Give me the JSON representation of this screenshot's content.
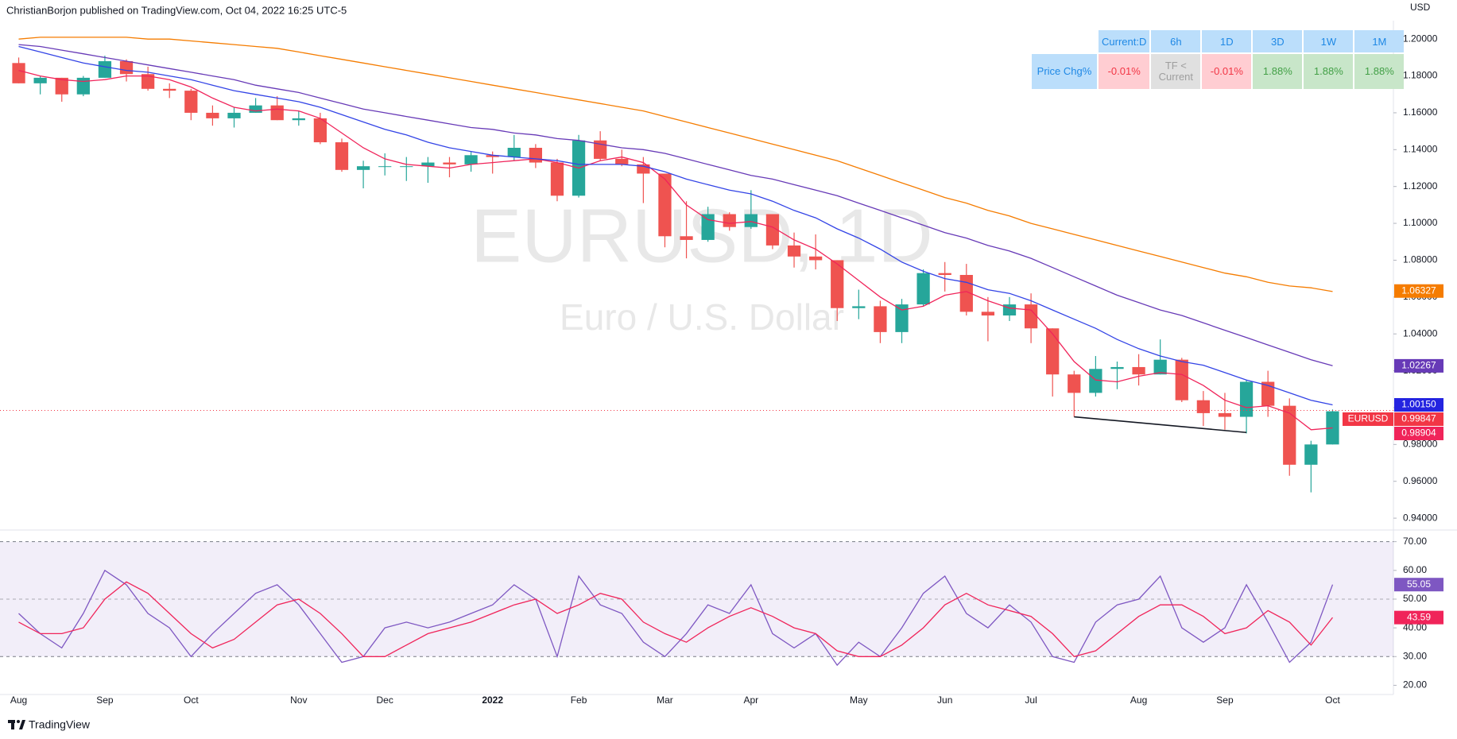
{
  "header": {
    "text": "ChristianBorjon published on TradingView.com, Oct 04, 2022 16:25 UTC-5",
    "currency": "USD"
  },
  "watermark": {
    "symbol": "EURUSD, 1D",
    "description": "Euro / U.S. Dollar"
  },
  "table": {
    "header": [
      "Current:D",
      "6h",
      "1D",
      "3D",
      "1W",
      "1M"
    ],
    "row": [
      "Price Chg%",
      "-0.01%",
      "TF < Current",
      "-0.01%",
      "1.88%",
      "1.88%",
      "1.88%"
    ]
  },
  "footer": {
    "brand": "TradingView"
  },
  "chart_data": [
    {
      "type": "candlestick",
      "categories": [
        "Aug",
        null,
        null,
        null,
        "Sep",
        null,
        null,
        null,
        "Oct",
        null,
        null,
        null,
        null,
        "Nov",
        null,
        null,
        null,
        "Dec",
        null,
        null,
        null,
        null,
        "2022",
        null,
        null,
        null,
        "Feb",
        null,
        null,
        null,
        "Mar",
        null,
        null,
        null,
        "Apr",
        null,
        null,
        null,
        null,
        "May",
        null,
        null,
        null,
        "Jun",
        null,
        null,
        null,
        "Jul",
        null,
        null,
        null,
        null,
        "Aug",
        null,
        null,
        null,
        "Sep",
        null,
        null,
        null,
        null,
        "Oct"
      ],
      "open": [
        1.187,
        1.176,
        1.179,
        1.17,
        1.179,
        1.188,
        1.181,
        1.173,
        1.172,
        1.16,
        1.157,
        1.16,
        1.164,
        1.156,
        1.157,
        1.144,
        1.129,
        1.131,
        1.131,
        1.131,
        1.133,
        1.132,
        1.137,
        1.136,
        1.141,
        1.133,
        1.115,
        1.145,
        1.135,
        1.132,
        1.127,
        1.093,
        1.091,
        1.105,
        1.098,
        1.105,
        1.088,
        1.082,
        1.08,
        1.054,
        1.055,
        1.041,
        1.056,
        1.073,
        1.072,
        1.052,
        1.05,
        1.056,
        1.043,
        1.018,
        1.008,
        1.021,
        1.022,
        1.018,
        1.026,
        1.004,
        0.997,
        0.995,
        1.014,
        1.001,
        0.969,
        0.98
      ],
      "high": [
        1.19,
        1.18,
        1.179,
        1.18,
        1.191,
        1.189,
        1.185,
        1.176,
        1.173,
        1.164,
        1.163,
        1.168,
        1.169,
        1.161,
        1.16,
        1.146,
        1.134,
        1.138,
        1.136,
        1.136,
        1.136,
        1.139,
        1.139,
        1.148,
        1.143,
        1.135,
        1.148,
        1.15,
        1.14,
        1.136,
        1.127,
        1.112,
        1.109,
        1.106,
        1.118,
        1.105,
        1.095,
        1.094,
        1.08,
        1.064,
        1.058,
        1.059,
        1.075,
        1.079,
        1.078,
        1.06,
        1.06,
        1.062,
        1.043,
        1.02,
        1.028,
        1.025,
        1.029,
        1.037,
        1.027,
        1.009,
        1.008,
        1.015,
        1.02,
        1.005,
        0.982,
        0.999
      ],
      "low": [
        1.176,
        1.17,
        1.166,
        1.169,
        1.179,
        1.177,
        1.172,
        1.168,
        1.156,
        1.153,
        1.152,
        1.16,
        1.156,
        1.153,
        1.143,
        1.128,
        1.119,
        1.126,
        1.123,
        1.122,
        1.125,
        1.128,
        1.127,
        1.134,
        1.13,
        1.112,
        1.114,
        1.134,
        1.131,
        1.111,
        1.087,
        1.081,
        1.09,
        1.096,
        1.097,
        1.086,
        1.076,
        1.075,
        1.047,
        1.048,
        1.035,
        1.035,
        1.055,
        1.063,
        1.05,
        1.036,
        1.047,
        1.035,
        1.006,
        0.995,
        1.006,
        1.01,
        1.012,
        1.018,
        1.003,
        0.99,
        0.988,
        0.986,
        0.995,
        0.963,
        0.954,
        0.98
      ],
      "close": [
        1.176,
        1.179,
        1.17,
        1.179,
        1.188,
        1.181,
        1.173,
        1.172,
        1.16,
        1.157,
        1.16,
        1.164,
        1.156,
        1.157,
        1.144,
        1.129,
        1.131,
        1.131,
        1.131,
        1.133,
        1.132,
        1.137,
        1.136,
        1.141,
        1.133,
        1.115,
        1.145,
        1.135,
        1.132,
        1.127,
        1.093,
        1.091,
        1.105,
        1.098,
        1.105,
        1.088,
        1.082,
        1.08,
        1.054,
        1.055,
        1.041,
        1.056,
        1.073,
        1.072,
        1.052,
        1.05,
        1.056,
        1.043,
        1.018,
        1.008,
        1.021,
        1.022,
        1.018,
        1.026,
        1.004,
        0.997,
        0.995,
        1.014,
        1.001,
        0.969,
        0.98,
        0.998
      ],
      "up_color": "#26a69a",
      "down_color": "#ef5350",
      "series": [
        {
          "color": "#f0245a",
          "values": [
            1.183,
            1.18,
            1.178,
            1.177,
            1.178,
            1.18,
            1.18,
            1.178,
            1.174,
            1.168,
            1.163,
            1.161,
            1.162,
            1.161,
            1.157,
            1.149,
            1.141,
            1.135,
            1.132,
            1.131,
            1.13,
            1.132,
            1.133,
            1.134,
            1.135,
            1.133,
            1.13,
            1.134,
            1.136,
            1.133,
            1.124,
            1.11,
            1.102,
            1.1,
            1.101,
            1.098,
            1.091,
            1.086,
            1.078,
            1.069,
            1.06,
            1.053,
            1.055,
            1.061,
            1.063,
            1.058,
            1.054,
            1.053,
            1.04,
            1.025,
            1.015,
            1.014,
            1.017,
            1.019,
            1.018,
            1.012,
            1.004,
            1.0,
            1.001,
            0.997,
            0.988,
            0.989
          ]
        },
        {
          "color": "#3344e6",
          "values": [
            1.196,
            1.193,
            1.19,
            1.187,
            1.185,
            1.183,
            1.182,
            1.18,
            1.178,
            1.175,
            1.172,
            1.17,
            1.168,
            1.166,
            1.163,
            1.159,
            1.155,
            1.151,
            1.148,
            1.144,
            1.141,
            1.139,
            1.137,
            1.136,
            1.135,
            1.134,
            1.132,
            1.132,
            1.132,
            1.131,
            1.128,
            1.124,
            1.121,
            1.118,
            1.116,
            1.112,
            1.107,
            1.103,
            1.097,
            1.092,
            1.086,
            1.079,
            1.074,
            1.07,
            1.068,
            1.064,
            1.062,
            1.058,
            1.053,
            1.048,
            1.043,
            1.037,
            1.032,
            1.028,
            1.025,
            1.023,
            1.019,
            1.015,
            1.012,
            1.008,
            1.004,
            1.0015
          ]
        },
        {
          "color": "#673ab7",
          "values": [
            1.197,
            1.196,
            1.194,
            1.192,
            1.19,
            1.188,
            1.186,
            1.184,
            1.182,
            1.18,
            1.178,
            1.175,
            1.173,
            1.171,
            1.168,
            1.165,
            1.162,
            1.16,
            1.158,
            1.156,
            1.154,
            1.152,
            1.151,
            1.149,
            1.148,
            1.146,
            1.145,
            1.143,
            1.141,
            1.14,
            1.138,
            1.135,
            1.132,
            1.129,
            1.126,
            1.124,
            1.121,
            1.118,
            1.115,
            1.111,
            1.107,
            1.103,
            1.099,
            1.095,
            1.092,
            1.088,
            1.085,
            1.081,
            1.076,
            1.071,
            1.066,
            1.061,
            1.057,
            1.053,
            1.05,
            1.046,
            1.042,
            1.038,
            1.034,
            1.03,
            1.026,
            1.0227
          ]
        },
        {
          "color": "#f57c00",
          "values": [
            1.2,
            1.201,
            1.201,
            1.201,
            1.201,
            1.201,
            1.2,
            1.2,
            1.199,
            1.198,
            1.197,
            1.196,
            1.195,
            1.193,
            1.191,
            1.189,
            1.187,
            1.185,
            1.183,
            1.181,
            1.179,
            1.177,
            1.175,
            1.173,
            1.171,
            1.169,
            1.167,
            1.165,
            1.163,
            1.161,
            1.158,
            1.155,
            1.152,
            1.149,
            1.146,
            1.143,
            1.14,
            1.137,
            1.134,
            1.13,
            1.126,
            1.122,
            1.118,
            1.114,
            1.111,
            1.107,
            1.104,
            1.1,
            1.097,
            1.094,
            1.091,
            1.088,
            1.085,
            1.082,
            1.079,
            1.076,
            1.073,
            1.071,
            1.068,
            1.066,
            1.065,
            1.063
          ]
        }
      ],
      "ylim": [
        0.934,
        1.21
      ],
      "yticks": [
        {
          "value": 0.94,
          "label": "0.94000"
        },
        {
          "value": 0.96,
          "label": "0.96000"
        },
        {
          "value": 0.98,
          "label": "0.98000"
        },
        {
          "value": 1.0,
          "label": "1.00000"
        },
        {
          "value": 1.02,
          "label": "1.02000"
        },
        {
          "value": 1.04,
          "label": "1.04000"
        },
        {
          "value": 1.06,
          "label": "1.06000"
        },
        {
          "value": 1.08,
          "label": "1.08000"
        },
        {
          "value": 1.1,
          "label": "1.10000"
        },
        {
          "value": 1.12,
          "label": "1.12000"
        },
        {
          "value": 1.14,
          "label": "1.14000"
        },
        {
          "value": 1.16,
          "label": "1.16000"
        },
        {
          "value": 1.18,
          "label": "1.18000"
        },
        {
          "value": 1.2,
          "label": "1.20000"
        }
      ],
      "price_labels": [
        {
          "value": 1.06327,
          "label": "1.06327",
          "color": "#f57c00"
        },
        {
          "value": 1.02267,
          "label": "1.02267",
          "color": "#673ab7"
        },
        {
          "value": 1.0015,
          "label": "1.00150",
          "color": "#2424e0"
        },
        {
          "name": "EURUSD",
          "value": 0.99847,
          "label": "0.99847",
          "color": "#f23645",
          "last_price": true
        },
        {
          "value": 0.98904,
          "label": "0.98904",
          "color": "#f0245a"
        }
      ],
      "trendline": {
        "x": [
          49,
          57
        ],
        "y": [
          0.995,
          0.9865
        ],
        "color": "#131722"
      }
    },
    {
      "type": "line",
      "series": [
        {
          "color": "#7e57c2",
          "values": [
            45,
            38,
            33,
            45,
            60,
            55,
            45,
            40,
            30,
            38,
            45,
            52,
            55,
            48,
            38,
            28,
            30,
            40,
            42,
            40,
            42,
            45,
            48,
            55,
            50,
            30,
            58,
            48,
            45,
            35,
            30,
            38,
            48,
            45,
            55,
            38,
            33,
            38,
            27,
            35,
            30,
            40,
            52,
            58,
            45,
            40,
            48,
            42,
            30,
            28,
            42,
            48,
            50,
            58,
            40,
            35,
            40,
            55,
            42,
            28,
            35,
            55.05
          ]
        },
        {
          "color": "#f0245a",
          "values": [
            42,
            38,
            38,
            40,
            50,
            56,
            52,
            45,
            38,
            33,
            36,
            42,
            48,
            50,
            45,
            38,
            30,
            30,
            34,
            38,
            40,
            42,
            45,
            48,
            50,
            45,
            48,
            52,
            50,
            42,
            38,
            35,
            40,
            44,
            47,
            44,
            40,
            38,
            32,
            30,
            30,
            34,
            40,
            48,
            52,
            48,
            46,
            44,
            38,
            30,
            32,
            38,
            44,
            48,
            48,
            44,
            38,
            40,
            46,
            42,
            34,
            43.59
          ]
        }
      ],
      "ylim": [
        16.8,
        73.5
      ],
      "yticks": [
        {
          "value": 20,
          "label": "20.00"
        },
        {
          "value": 30,
          "label": "30.00"
        },
        {
          "value": 40,
          "label": "40.00"
        },
        {
          "value": 50,
          "label": "50.00"
        },
        {
          "value": 60,
          "label": "60.00"
        },
        {
          "value": 70,
          "label": "70.00"
        }
      ],
      "band": [
        30,
        70
      ],
      "band_color": "#7e57c2",
      "midline": 50,
      "price_labels": [
        {
          "value": 55.05,
          "label": "55.05",
          "color": "#7e57c2"
        },
        {
          "value": 43.59,
          "label": "43.59",
          "color": "#f0245a"
        }
      ]
    }
  ]
}
